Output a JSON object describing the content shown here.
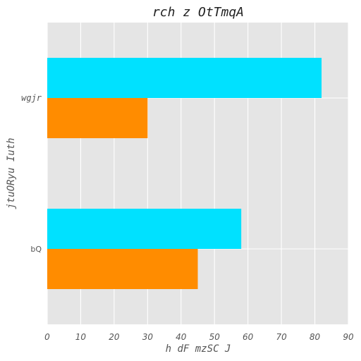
{
  "chart_data": {
    "type": "bar",
    "orientation": "horizontal",
    "title": "rch z OtTmqA",
    "xlabel": "h  dF mzSC J",
    "ylabel": "jtuORyu Iuth",
    "xlim": [
      0,
      90
    ],
    "x_ticks": [
      "0",
      "10",
      "20",
      "30",
      "40",
      "50",
      "60",
      "70",
      "80",
      "90"
    ],
    "categories": [
      "wgjr",
      "bQ"
    ],
    "series": [
      {
        "values": [
          82,
          58
        ],
        "color": "#00e1ff"
      },
      {
        "values": [
          30,
          45
        ],
        "color": "#ff8c00"
      }
    ],
    "grid": true,
    "background": "#e5e5e5"
  }
}
